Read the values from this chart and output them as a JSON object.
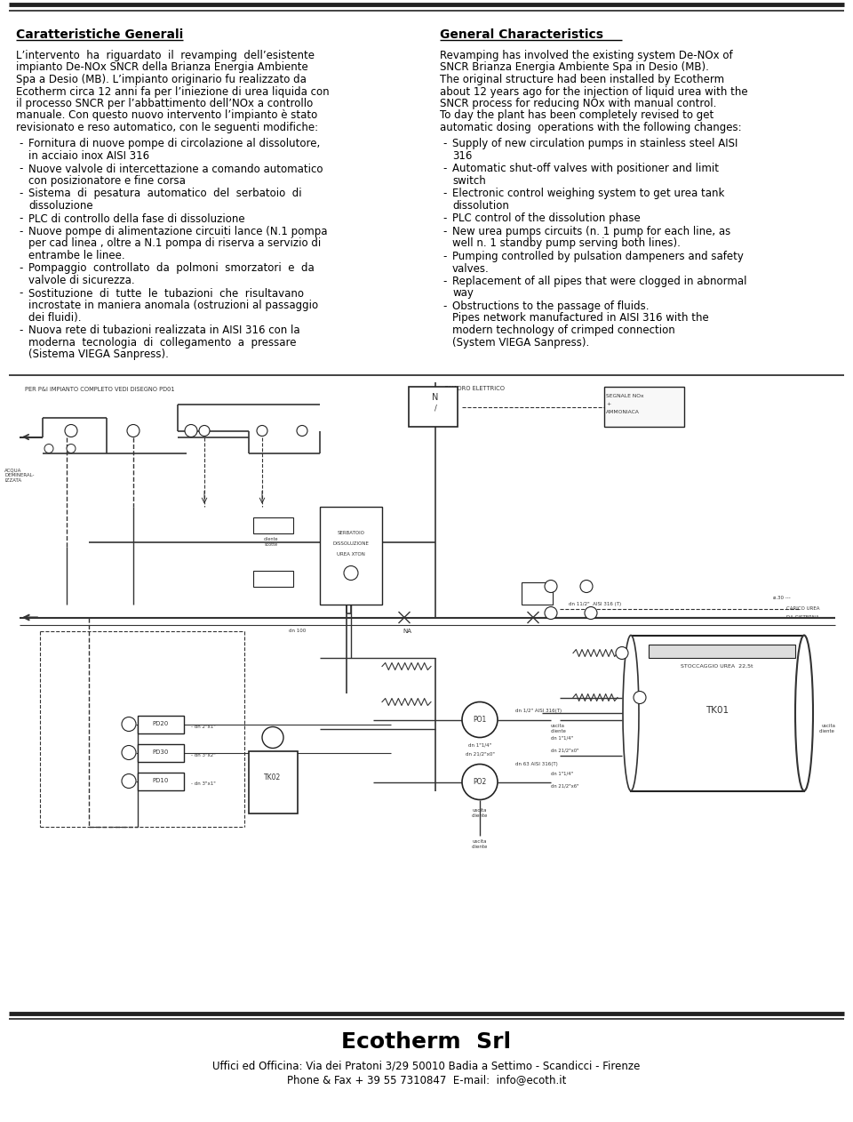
{
  "bg_color": "#ffffff",
  "text_color": "#000000",
  "border_color": "#222222",
  "left_title": "Caratteristiche Generali",
  "right_title": "General Characteristics",
  "left_body": "L’intervento  ha  riguardato  il  revamping  dell’esistente\nimpianto De-NOx SNCR della Brianza Energia Ambiente\nSpa a Desio (MB). L’impianto originario fu realizzato da\nEcotherm circa 12 anni fa per l’iniezione di urea liquida con\nil processo SNCR per l’abbattimento dell’NOx a controllo\nmanuale. Con questo nuovo intervento l’impianto è stato\nrevisionato e reso automatico, con le seguenti modifiche:",
  "left_bullets": [
    [
      "Fornitura di nuove pompe di circolazione al dissolutore,",
      "in acciaio inox AISI 316"
    ],
    [
      "Nuove valvole di intercettazione a comando automatico",
      "con posizionatore e fine corsa"
    ],
    [
      "Sistema  di  pesatura  automatico  del  serbatoio  di",
      "dissoluzione"
    ],
    [
      "PLC di controllo della fase di dissoluzione"
    ],
    [
      "Nuove pompe di alimentazione circuiti lance (N.1 pompa",
      "per cad linea , oltre a N.1 pompa di riserva a servizio di",
      "entrambe le linee."
    ],
    [
      "Pompaggio  controllato  da  polmoni  smorzatori  e  da",
      "valvole di sicurezza."
    ],
    [
      "Sostituzione  di  tutte  le  tubazioni  che  risultavano",
      "incrostate in maniera anomala (ostruzioni al passaggio",
      "dei fluidi)."
    ],
    [
      "Nuova rete di tubazioni realizzata in AISI 316 con la",
      "moderna  tecnologia  di  collegamento  a  pressare",
      "(Sistema VIEGA Sanpress)."
    ]
  ],
  "right_body": "Revamping has involved the existing system De-NOx of\nSNCR Brianza Energia Ambiente Spa in Desio (MB).\nThe original structure had been installed by Ecotherm\nabout 12 years ago for the injection of liquid urea with the\nSNCR process for reducing NOx with manual control.\nTo day the plant has been completely revised to get\nautomatic dosing  operations with the following changes:",
  "right_bullets": [
    [
      "Supply of new circulation pumps in stainless steel AISI",
      "316"
    ],
    [
      "Automatic shut-off valves with positioner and limit",
      "switch"
    ],
    [
      "Electronic control weighing system to get urea tank",
      "dissolution"
    ],
    [
      "PLC control of the dissolution phase"
    ],
    [
      "New urea pumps circuits (n. 1 pump for each line, as",
      "well n. 1 standby pump serving both lines)."
    ],
    [
      "Pumping controlled by pulsation dampeners and safety",
      "valves."
    ],
    [
      "Replacement of all pipes that were clogged in abnormal",
      "way"
    ],
    [
      "Obstructions to the passage of fluids.",
      "Pipes network manufactured in AISI 316 with the",
      "modern technology of crimped connection",
      "(System VIEGA Sanpress)."
    ]
  ],
  "footer_company": "Ecotherm  Srl",
  "footer_address": "Uffici ed Officina: Via dei Pratoni 3/29 50010 Badia a Settimo - Scandicci - Firenze",
  "footer_contact": "Phone & Fax + 39 55 7310847  E-mail:  info@ecoth.it"
}
